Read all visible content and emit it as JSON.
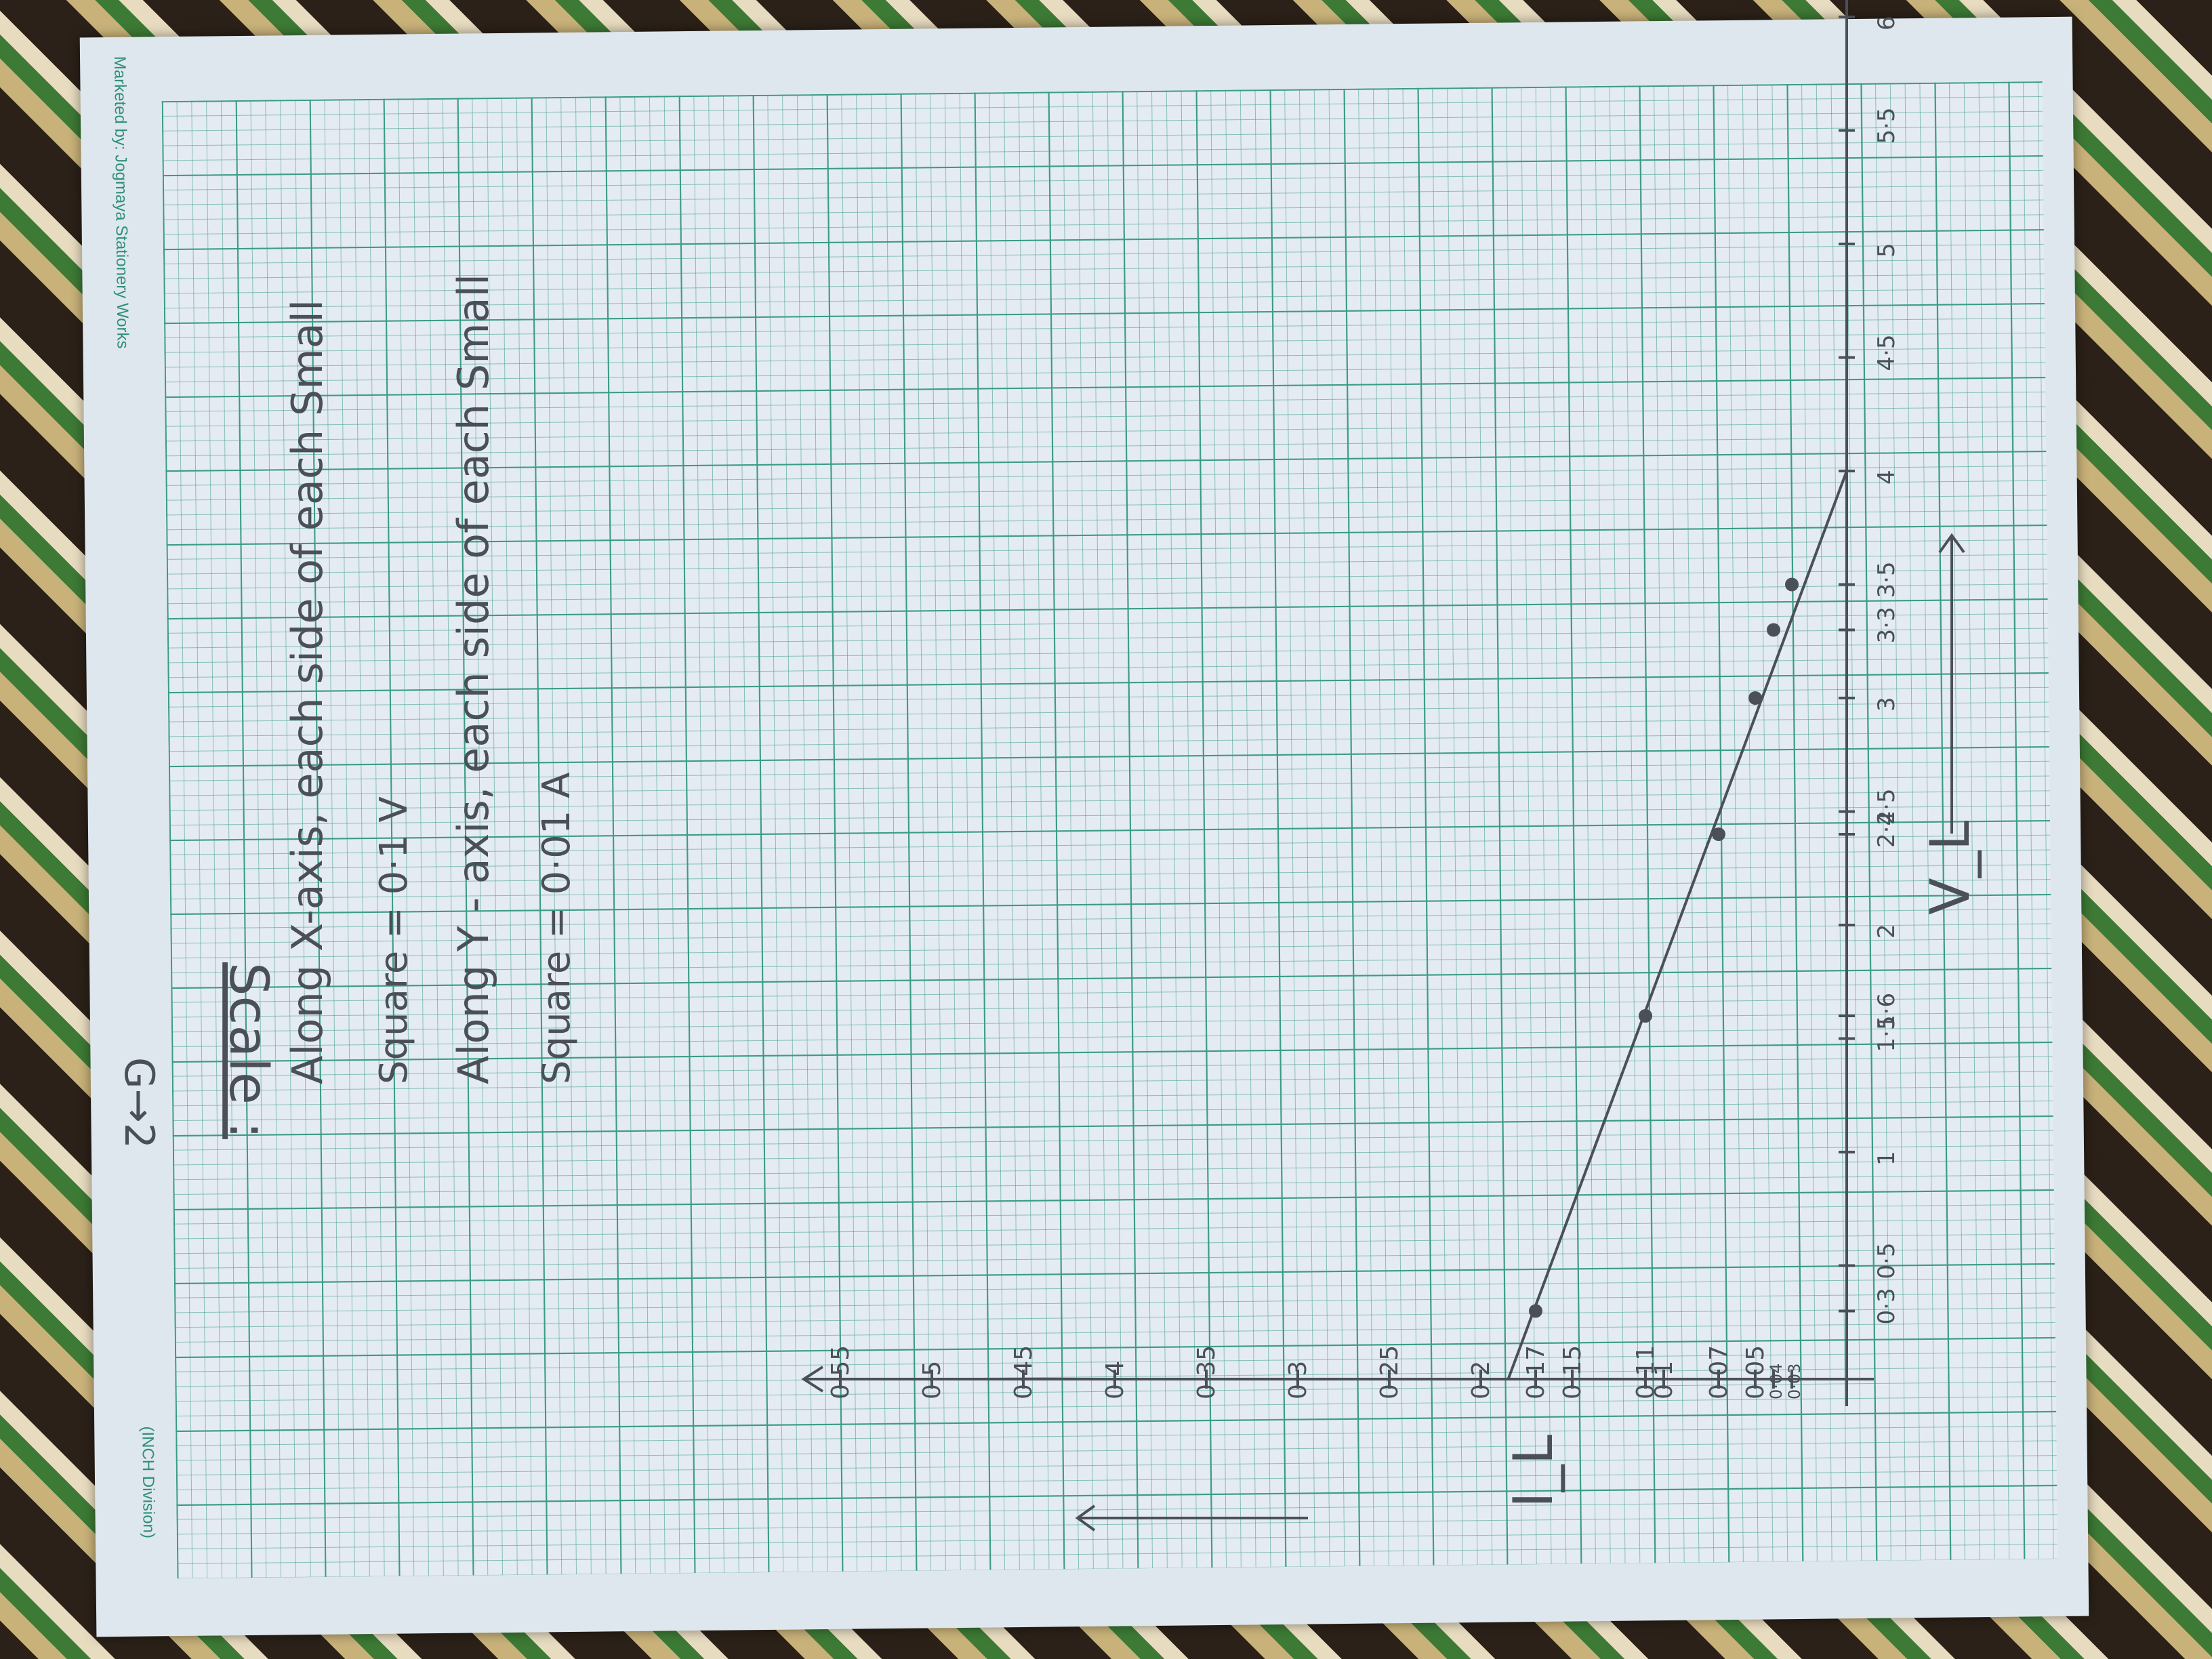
{
  "paper": {
    "marketed_by": "Marketed by: Jogmaya Stationery Works",
    "division": "(INCH Division)",
    "graph_number": "G→2"
  },
  "scale": {
    "title": "Scale :",
    "x_line1": "Along X-axis, each side of each Small",
    "x_line2": "Square = 0·1 V",
    "y_line1": "Along Y - axis, each side of each Small",
    "y_line2": "Square = 0·01 A"
  },
  "colors": {
    "ink": "#4a4f58",
    "grid": "#3a9b86",
    "paper": "#e4ebf2"
  },
  "chart_data": {
    "type": "line",
    "xlabel": "V_L",
    "ylabel": "I_L",
    "xlim": [
      0,
      6.3
    ],
    "ylim": [
      0,
      0.57
    ],
    "x_ticks": [
      {
        "v": 0.3,
        "t": "0·3"
      },
      {
        "v": 0.5,
        "t": "0·5"
      },
      {
        "v": 1,
        "t": "1"
      },
      {
        "v": 1.5,
        "t": "1·5"
      },
      {
        "v": 1.6,
        "t": "1·6"
      },
      {
        "v": 2,
        "t": "2"
      },
      {
        "v": 2.4,
        "t": "2·4"
      },
      {
        "v": 2.5,
        "t": "2·5"
      },
      {
        "v": 3,
        "t": "3"
      },
      {
        "v": 3.3,
        "t": "3·3"
      },
      {
        "v": 3.5,
        "t": "3·5"
      },
      {
        "v": 4,
        "t": "4"
      },
      {
        "v": 4.5,
        "t": "4·5"
      },
      {
        "v": 5,
        "t": "5"
      },
      {
        "v": 5.5,
        "t": "5·5"
      },
      {
        "v": 6,
        "t": "6"
      }
    ],
    "y_ticks": [
      {
        "v": 0.03,
        "t": "0·03"
      },
      {
        "v": 0.04,
        "t": "0·04"
      },
      {
        "v": 0.05,
        "t": "0·05"
      },
      {
        "v": 0.07,
        "t": "0·07"
      },
      {
        "v": 0.1,
        "t": "0·1"
      },
      {
        "v": 0.11,
        "t": "0·11"
      },
      {
        "v": 0.15,
        "t": "0·15"
      },
      {
        "v": 0.17,
        "t": "0·17"
      },
      {
        "v": 0.2,
        "t": "0·2"
      },
      {
        "v": 0.25,
        "t": "0·25"
      },
      {
        "v": 0.3,
        "t": "0·3"
      },
      {
        "v": 0.35,
        "t": "0·35"
      },
      {
        "v": 0.4,
        "t": "0·4"
      },
      {
        "v": 0.45,
        "t": "0·45"
      },
      {
        "v": 0.5,
        "t": "0·5"
      },
      {
        "v": 0.55,
        "t": "0·55"
      }
    ],
    "points": [
      {
        "x": 0.3,
        "y": 0.17
      },
      {
        "x": 1.6,
        "y": 0.11
      },
      {
        "x": 2.4,
        "y": 0.07
      },
      {
        "x": 3.0,
        "y": 0.05
      },
      {
        "x": 3.3,
        "y": 0.04
      },
      {
        "x": 3.5,
        "y": 0.03
      }
    ],
    "fit_line": [
      {
        "x": 0,
        "y": 0.185
      },
      {
        "x": 4.0,
        "y": 0
      }
    ],
    "grid": true
  }
}
